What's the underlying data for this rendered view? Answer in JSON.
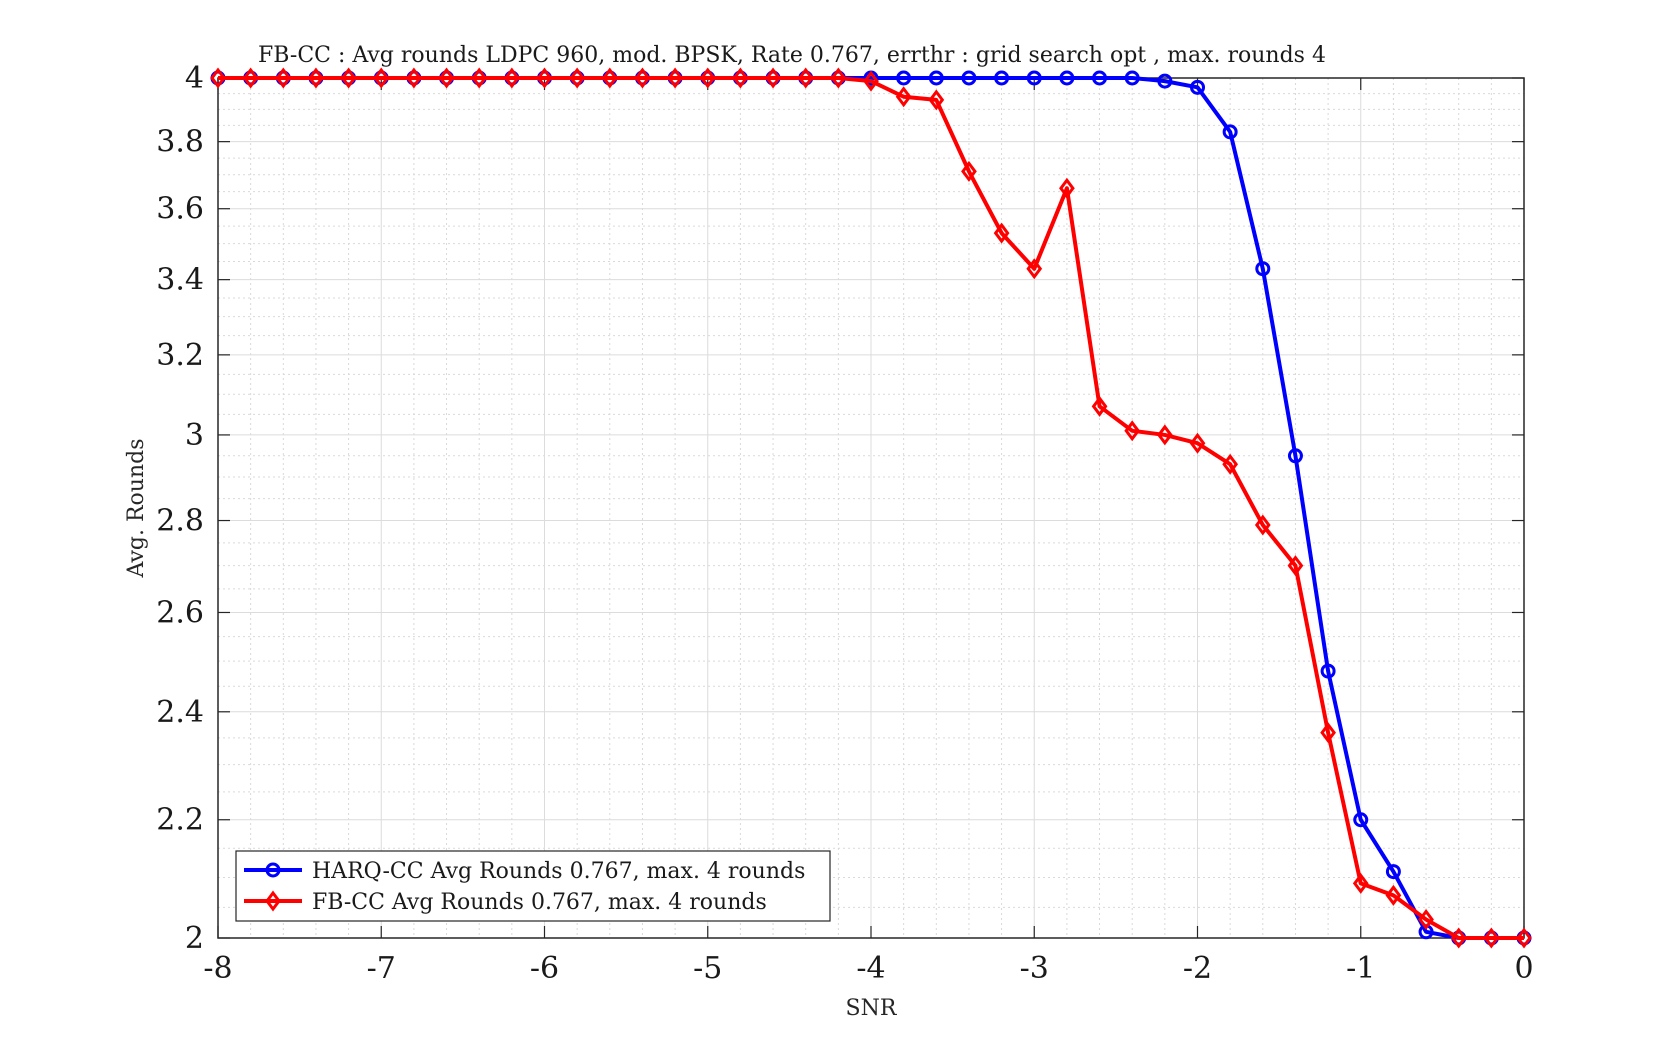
{
  "chart_data": {
    "type": "line",
    "title": "FB-CC : Avg rounds LDPC 960, mod. BPSK, Rate 0.767, errthr : grid search opt , max. rounds 4",
    "xlabel": "SNR",
    "ylabel": "Avg. Rounds",
    "xlim": [
      -8,
      0
    ],
    "ylim": [
      2,
      4
    ],
    "yscale": "log",
    "xticks": [
      -8,
      -7,
      -6,
      -5,
      -4,
      -3,
      -2,
      -1,
      0
    ],
    "xtick_labels": [
      "-8",
      "-7",
      "-6",
      "-5",
      "-4",
      "-3",
      "-2",
      "-1",
      "0"
    ],
    "yticks": [
      2,
      2.2,
      2.4,
      2.6,
      2.8,
      3,
      3.2,
      3.4,
      3.6,
      3.8,
      4
    ],
    "ytick_labels": [
      "2",
      "2.2",
      "2.4",
      "2.6",
      "2.8",
      "3",
      "3.2",
      "3.4",
      "3.6",
      "3.8",
      "4"
    ],
    "grid": true,
    "legend_position": "bottom-left",
    "x": [
      -8,
      -7.8,
      -7.6,
      -7.4,
      -7.2,
      -7,
      -6.8,
      -6.6,
      -6.4,
      -6.2,
      -6,
      -5.8,
      -5.6,
      -5.4,
      -5.2,
      -5,
      -4.8,
      -4.6,
      -4.4,
      -4.2,
      -4,
      -3.8,
      -3.6,
      -3.4,
      -3.2,
      -3,
      -2.8,
      -2.6,
      -2.4,
      -2.2,
      -2,
      -1.8,
      -1.6,
      -1.4,
      -1.2,
      -1,
      -0.8,
      -0.6,
      -0.4,
      -0.2,
      0
    ],
    "series": [
      {
        "name": "HARQ-CC Avg Rounds 0.767, max. 4 rounds",
        "color": "#0000ff",
        "marker": "circle",
        "values": [
          4,
          4,
          4,
          4,
          4,
          4,
          4,
          4,
          4,
          4,
          4,
          4,
          4,
          4,
          4,
          4,
          4,
          4,
          4,
          4,
          4,
          4,
          4,
          4,
          4,
          4,
          4,
          4,
          4,
          3.99,
          3.97,
          3.83,
          3.43,
          2.95,
          2.48,
          2.2,
          2.11,
          2.01,
          2.0,
          2.0,
          2.0
        ]
      },
      {
        "name": "FB-CC Avg Rounds 0.767, max. 4 rounds",
        "color": "#ff0000",
        "marker": "diamond",
        "values": [
          4,
          4,
          4,
          4,
          4,
          4,
          4,
          4,
          4,
          4,
          4,
          4,
          4,
          4,
          4,
          4,
          4,
          4,
          4,
          4,
          3.99,
          3.94,
          3.93,
          3.71,
          3.53,
          3.43,
          3.66,
          3.07,
          3.01,
          3.0,
          2.98,
          2.93,
          2.79,
          2.7,
          2.36,
          2.09,
          2.07,
          2.03,
          2.0,
          2.0,
          2.0
        ]
      }
    ]
  }
}
